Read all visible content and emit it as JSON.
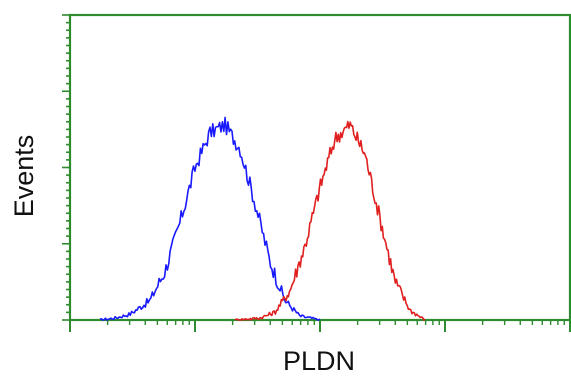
{
  "chart_data": {
    "type": "line",
    "title": "",
    "xlabel": "PLDN",
    "ylabel": "Events",
    "x_scale": "log",
    "x_tick_labels": [],
    "y_tick_labels": [],
    "grid": false,
    "legend": "none",
    "axis_color": "#2e8b2e",
    "series": [
      {
        "color": "#1a1aff",
        "x": [
          0.06,
          0.09,
          0.12,
          0.16,
          0.19,
          0.22,
          0.25,
          0.28,
          0.31,
          0.34,
          0.37,
          0.4,
          0.43,
          0.46,
          0.5
        ],
        "y": [
          0.0,
          0.01,
          0.03,
          0.1,
          0.25,
          0.5,
          0.78,
          0.96,
          1.0,
          0.88,
          0.6,
          0.3,
          0.1,
          0.02,
          0.0
        ]
      },
      {
        "color": "#e02020",
        "x": [
          0.33,
          0.38,
          0.41,
          0.44,
          0.47,
          0.5,
          0.53,
          0.56,
          0.59,
          0.62,
          0.65,
          0.68,
          0.71
        ],
        "y": [
          0.0,
          0.01,
          0.04,
          0.15,
          0.38,
          0.68,
          0.93,
          1.0,
          0.85,
          0.52,
          0.2,
          0.05,
          0.0
        ]
      }
    ]
  }
}
